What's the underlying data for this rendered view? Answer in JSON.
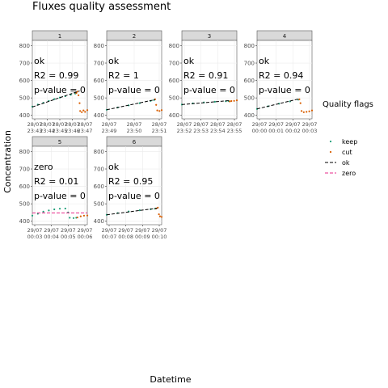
{
  "title": "Fluxes quality assessment",
  "xlabel": "Datetime",
  "ylabel": "Concentration",
  "legend": {
    "title": "Quality flags",
    "placement": "right",
    "entries": [
      {
        "label": "keep",
        "kind": "point",
        "color": "#1b9e77"
      },
      {
        "label": "cut",
        "kind": "point",
        "color": "#d95f02"
      },
      {
        "label": "ok",
        "kind": "dashed-line",
        "color": "#000000"
      },
      {
        "label": "zero",
        "kind": "dashed-line",
        "color": "#e7298a"
      }
    ]
  },
  "colors": {
    "keep": "#1b9e77",
    "cut": "#d95f02",
    "ok": "#000000",
    "zero": "#e7298a",
    "strip": "#d9d9d9",
    "grid": "#ebebeb"
  },
  "chart_data": {
    "type": "scatter",
    "facet": "small-multiples",
    "grid": true,
    "ylim": [
      380,
      830
    ],
    "yticks": [
      400,
      500,
      600,
      700,
      800
    ],
    "panels": [
      {
        "strip": "1",
        "flag": "ok",
        "r2": "R2 = 0.99",
        "pvalue": "p-value = 0",
        "xticks": [
          "28/07\n23:43",
          "28/07\n23:44",
          "28/07\n23:45",
          "28/07\n23:46",
          "28/07\n23:47"
        ],
        "keep": [
          [
            0,
            450
          ],
          [
            0.1,
            462
          ],
          [
            0.2,
            472
          ],
          [
            0.3,
            483
          ],
          [
            0.4,
            493
          ],
          [
            0.5,
            502
          ],
          [
            0.6,
            510
          ],
          [
            0.7,
            518
          ],
          [
            0.78,
            525
          ]
        ],
        "cut": [
          [
            0.8,
            528
          ],
          [
            0.82,
            536
          ],
          [
            0.84,
            515
          ],
          [
            0.86,
            470
          ],
          [
            0.87,
            425
          ],
          [
            0.9,
            418
          ],
          [
            0.93,
            428
          ],
          [
            0.96,
            420
          ],
          [
            1.0,
            430
          ]
        ],
        "fit": [
          [
            0,
            448
          ],
          [
            0.86,
            540
          ]
        ]
      },
      {
        "strip": "2",
        "flag": "ok",
        "r2": "R2 = 1",
        "pvalue": "p-value = 0",
        "xticks": [
          "28/07\n23:49",
          "28/07\n23:50",
          "28/07\n23:51"
        ],
        "keep": [
          [
            0,
            432
          ],
          [
            0.2,
            445
          ],
          [
            0.4,
            457
          ],
          [
            0.6,
            470
          ],
          [
            0.8,
            483
          ],
          [
            0.86,
            488
          ]
        ],
        "cut": [
          [
            0.88,
            492
          ],
          [
            0.9,
            460
          ],
          [
            0.92,
            428
          ],
          [
            0.96,
            425
          ],
          [
            1.0,
            430
          ]
        ],
        "fit": [
          [
            0,
            432
          ],
          [
            0.88,
            490
          ]
        ]
      },
      {
        "strip": "3",
        "flag": "ok",
        "r2": "R2 = 0.91",
        "pvalue": "p-value = 0",
        "xticks": [
          "28/07\n23:52",
          "28/07\n23:53",
          "28/07\n23:54",
          "28/07\n23:55"
        ],
        "keep": [
          [
            0,
            462
          ],
          [
            0.2,
            469
          ],
          [
            0.4,
            474
          ],
          [
            0.6,
            478
          ],
          [
            0.8,
            481
          ],
          [
            0.85,
            482
          ]
        ],
        "cut": [
          [
            0.87,
            480
          ],
          [
            0.9,
            482
          ],
          [
            0.95,
            483
          ],
          [
            1.0,
            486
          ]
        ],
        "fit": [
          [
            0,
            462
          ],
          [
            0.87,
            485
          ]
        ]
      },
      {
        "strip": "4",
        "flag": "ok",
        "r2": "R2 = 0.94",
        "pvalue": "p-value = 0",
        "xticks": [
          "29/07\n00:00",
          "29/07\n00:01",
          "29/07\n00:02",
          "29/07\n00:03"
        ],
        "keep": [
          [
            0,
            437
          ],
          [
            0.2,
            452
          ],
          [
            0.4,
            467
          ],
          [
            0.6,
            480
          ],
          [
            0.75,
            490
          ]
        ],
        "cut": [
          [
            0.77,
            492
          ],
          [
            0.79,
            470
          ],
          [
            0.81,
            425
          ],
          [
            0.85,
            418
          ],
          [
            0.9,
            420
          ],
          [
            0.95,
            423
          ],
          [
            1.0,
            428
          ]
        ],
        "fit": [
          [
            0,
            437
          ],
          [
            0.77,
            495
          ]
        ]
      },
      {
        "strip": "5",
        "flag": "zero",
        "r2": "R2 = 0.01",
        "pvalue": "p-value = 0",
        "xticks": [
          "29/07\n00:03",
          "29/07\n00:04",
          "29/07\n00:05",
          "29/07\n00:06"
        ],
        "keep": [
          [
            0,
            432
          ],
          [
            0.1,
            443
          ],
          [
            0.2,
            455
          ],
          [
            0.3,
            462
          ],
          [
            0.4,
            468
          ],
          [
            0.5,
            472
          ],
          [
            0.6,
            473
          ],
          [
            0.65,
            450
          ],
          [
            0.68,
            420
          ],
          [
            0.75,
            418
          ],
          [
            0.8,
            420
          ]
        ],
        "cut": [
          [
            0.82,
            422
          ],
          [
            0.88,
            428
          ],
          [
            0.94,
            432
          ],
          [
            1.0,
            433
          ]
        ],
        "fit": [
          [
            0,
            448
          ],
          [
            1.0,
            448
          ]
        ]
      },
      {
        "strip": "6",
        "flag": "ok",
        "r2": "R2 = 0.95",
        "pvalue": "p-value = 0",
        "xticks": [
          "29/07\n00:07",
          "29/07\n00:08",
          "29/07\n00:09",
          "29/07\n00:10"
        ],
        "keep": [
          [
            0,
            437
          ],
          [
            0.2,
            447
          ],
          [
            0.4,
            456
          ],
          [
            0.6,
            463
          ],
          [
            0.8,
            469
          ],
          [
            0.88,
            472
          ]
        ],
        "cut": [
          [
            0.9,
            473
          ],
          [
            0.93,
            478
          ],
          [
            0.95,
            440
          ],
          [
            0.97,
            428
          ],
          [
            1.0,
            425
          ]
        ],
        "fit": [
          [
            0,
            437
          ],
          [
            0.92,
            475
          ]
        ]
      }
    ]
  }
}
